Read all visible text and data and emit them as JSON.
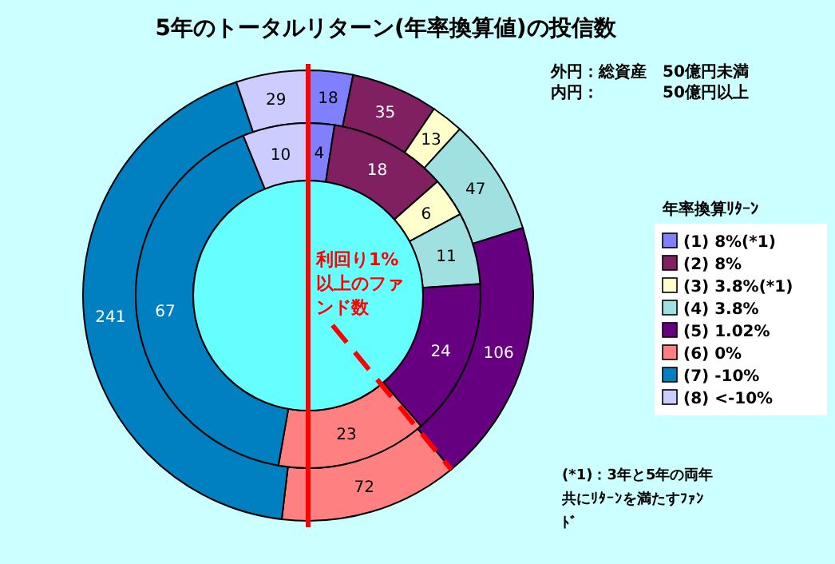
{
  "chart_data": {
    "type": "donut",
    "title": "5年のトータルリターン(年率換算値)の投信数",
    "legend_title": "年率換算ﾘﾀｰﾝ",
    "legend": "right",
    "data_labels": true,
    "categories": [
      "(1) 8%(*1)",
      "(2) 8%",
      "(3) 3.8%(*1)",
      "(4) 3.8%",
      "(5) 1.02%",
      "(6) 0%",
      "(7) -10%",
      "(8) <-10%"
    ],
    "series": [
      {
        "values": [
          18,
          35,
          13,
          47,
          106,
          72,
          241,
          29
        ]
      },
      {
        "values": [
          4,
          18,
          6,
          11,
          24,
          23,
          67,
          10
        ]
      }
    ],
    "colors": [
      "#8080ff",
      "#802060",
      "#ffffcc",
      "#a0e0e0",
      "#660080",
      "#ff8080",
      "#0080c0",
      "#ccccff"
    ],
    "annotations": [
      "外円：総資産　50億円未満",
      "内円：　　　　50億円以上",
      "利回り1%以上のファンド数",
      "(*1)：3年と5年の両年共にﾘﾀｰﾝを満たすﾌｧﾝﾄﾞ"
    ]
  }
}
